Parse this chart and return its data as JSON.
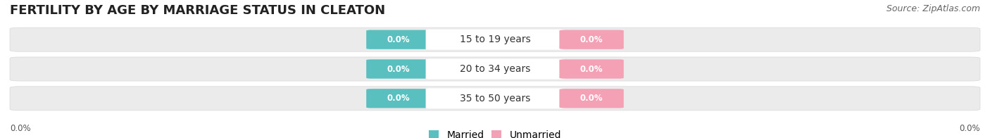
{
  "title": "FERTILITY BY AGE BY MARRIAGE STATUS IN CLEATON",
  "source": "Source: ZipAtlas.com",
  "categories": [
    "15 to 19 years",
    "20 to 34 years",
    "35 to 50 years"
  ],
  "married_values": [
    0.0,
    0.0,
    0.0
  ],
  "unmarried_values": [
    0.0,
    0.0,
    0.0
  ],
  "married_color": "#5abfbf",
  "unmarried_color": "#f4a0b5",
  "bar_bg_color": "#ebebeb",
  "bar_border_color": "#d8d8d8",
  "title_fontsize": 13,
  "source_fontsize": 9,
  "value_fontsize": 8.5,
  "category_fontsize": 10,
  "legend_fontsize": 10,
  "axis_label_fontsize": 8.5,
  "background_color": "#ffffff",
  "left_label": "0.0%",
  "right_label": "0.0%"
}
